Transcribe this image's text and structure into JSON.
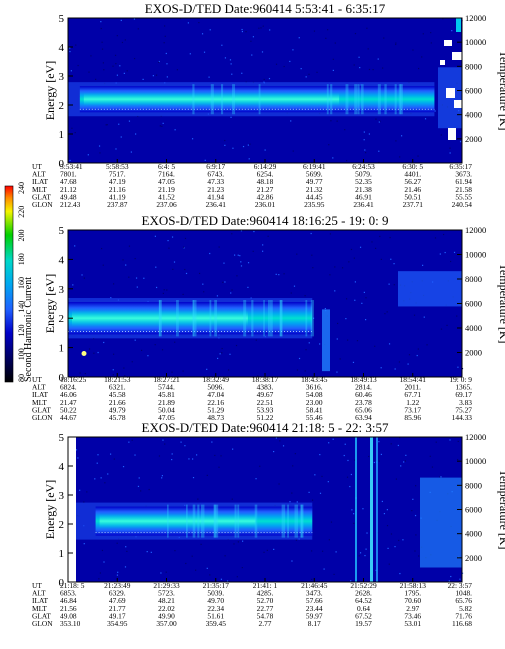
{
  "colorbar": {
    "label": "Second Harmonic Current",
    "ticks": [
      "240",
      "220",
      "200",
      "180",
      "160",
      "140",
      "120",
      "100",
      "80"
    ],
    "colors": [
      "#ff0000",
      "#ff8a00",
      "#f5f500",
      "#00d000",
      "#00d8c8",
      "#00a8f0",
      "#2060ff",
      "#0000c8",
      "#000060",
      "#000000"
    ]
  },
  "chart_data": [
    {
      "type": "heatmap",
      "title": "EXOS-D/TED   Date:960414  5:53:41 - 6:35:17",
      "ylabel": "Energy [eV]",
      "ylabel_right": "Temperature [K]",
      "ylim": [
        0,
        5
      ],
      "yticks": [
        0,
        1,
        2,
        3,
        4,
        5
      ],
      "ylim_right": [
        0,
        12000
      ],
      "yticks_right": [
        2000,
        4000,
        6000,
        8000,
        10000,
        12000
      ],
      "band": {
        "center_ev": 2.2,
        "halfwidth_ev": 0.45,
        "core_start": 0.03,
        "end": 0.93
      },
      "table_labels": [
        "UT",
        "ALT",
        "ILAT",
        "MLT",
        "GLAT",
        "GLON"
      ],
      "table_columns": [
        [
          "5:53:41",
          "7801.",
          "47.68",
          "21.12",
          "49.48",
          "212.43"
        ],
        [
          "5:58:53",
          "7517.",
          "47.19",
          "21.16",
          "41.19",
          "237.87"
        ],
        [
          "6:4: 5",
          "7164.",
          "47.05",
          "21.19",
          "41.52",
          "237.06"
        ],
        [
          "6:9:17",
          "6743.",
          "47.33",
          "21.23",
          "41.94",
          "236.41"
        ],
        [
          "6:14:29",
          "6254.",
          "48.18",
          "21.27",
          "42.86",
          "236.01"
        ],
        [
          "6:19:41",
          "5699.",
          "49.77",
          "21.32",
          "44.45",
          "235.95"
        ],
        [
          "6:24:53",
          "5079.",
          "52.35",
          "21.38",
          "46.91",
          "236.41"
        ],
        [
          "6:30: 5",
          "4401.",
          "56.27",
          "21.46",
          "50.51",
          "237.71"
        ],
        [
          "6:35:17",
          "3673.",
          "61.94",
          "21.58",
          "55.55",
          "240.54"
        ]
      ]
    },
    {
      "type": "heatmap",
      "title": "EXOS-D/TED   Date:960414  18:16:25 - 19: 0: 9",
      "ylabel": "Energy [eV]",
      "ylabel_right": "Temperature [K]",
      "ylim": [
        0,
        5
      ],
      "yticks": [
        0,
        1,
        2,
        3,
        4,
        5
      ],
      "ylim_right": [
        0,
        12000
      ],
      "yticks_right": [
        2000,
        4000,
        6000,
        8000,
        10000,
        12000
      ],
      "band": {
        "center_ev": 2.0,
        "halfwidth_ev": 0.55,
        "core_start": 0.0,
        "end": 0.62
      },
      "table_labels": [
        "UT",
        "ALT",
        "ILAT",
        "MLT",
        "GLAT",
        "GLON"
      ],
      "table_columns": [
        [
          "18:16:25",
          "6824.",
          "46.06",
          "21.47",
          "50.22",
          "44.67"
        ],
        [
          "18:21:53",
          "6321.",
          "45.58",
          "21.66",
          "49.79",
          "45.78"
        ],
        [
          "18:27:21",
          "5744.",
          "45.81",
          "21.89",
          "50.04",
          "47.05"
        ],
        [
          "18:32:49",
          "5096.",
          "47.04",
          "22.16",
          "51.29",
          "48.73"
        ],
        [
          "18:38:17",
          "4383.",
          "49.67",
          "22.51",
          "53.93",
          "51.22"
        ],
        [
          "18:43:45",
          "3616.",
          "54.08",
          "23.00",
          "58.41",
          "55.46"
        ],
        [
          "18:49:13",
          "2814.",
          "60.46",
          "23.78",
          "65.06",
          "63.94"
        ],
        [
          "18:54:41",
          "2011.",
          "67.71",
          "1.22",
          "73.17",
          "85.96"
        ],
        [
          "19: 0: 9",
          "1365.",
          "69.17",
          "3.83",
          "75.27",
          "144.33"
        ]
      ]
    },
    {
      "type": "heatmap",
      "title": "EXOS-D/TED   Date:960414  21:18: 5 - 22: 3:57",
      "ylabel": "Energy [eV]",
      "ylabel_right": "Temperature [K]",
      "ylim": [
        0,
        5
      ],
      "yticks": [
        0,
        1,
        2,
        3,
        4,
        5
      ],
      "ylim_right": [
        0,
        12000
      ],
      "yticks_right": [
        2000,
        4000,
        6000,
        8000,
        10000,
        12000
      ],
      "band": {
        "center_ev": 2.1,
        "halfwidth_ev": 0.5,
        "core_start": 0.07,
        "end": 0.62
      },
      "table_labels": [
        "UT",
        "ALT",
        "ILAT",
        "MLT",
        "GLAT",
        "GLON"
      ],
      "table_columns": [
        [
          "21:18: 5",
          "6853.",
          "46.84",
          "21.56",
          "49.08",
          "353.10"
        ],
        [
          "21:23:49",
          "6329.",
          "47.69",
          "21.77",
          "49.17",
          "354.95"
        ],
        [
          "21:29:33",
          "5723.",
          "48.21",
          "22.02",
          "49.90",
          "357.00"
        ],
        [
          "21:35:17",
          "5039.",
          "49.70",
          "22.34",
          "51.61",
          "359.45"
        ],
        [
          "21:41: 1",
          "4285.",
          "52.70",
          "22.77",
          "54.78",
          "2.77"
        ],
        [
          "21:46:45",
          "3473.",
          "57.66",
          "23.44",
          "59.97",
          "8.17"
        ],
        [
          "21:52:29",
          "2628.",
          "64.52",
          "0.64",
          "67.52",
          "19.57"
        ],
        [
          "21:58:13",
          "1795.",
          "70.60",
          "2.97",
          "73.46",
          "53.01"
        ],
        [
          "22: 3:57",
          "1048.",
          "65.76",
          "5.82",
          "71.76",
          "116.68"
        ]
      ]
    }
  ]
}
